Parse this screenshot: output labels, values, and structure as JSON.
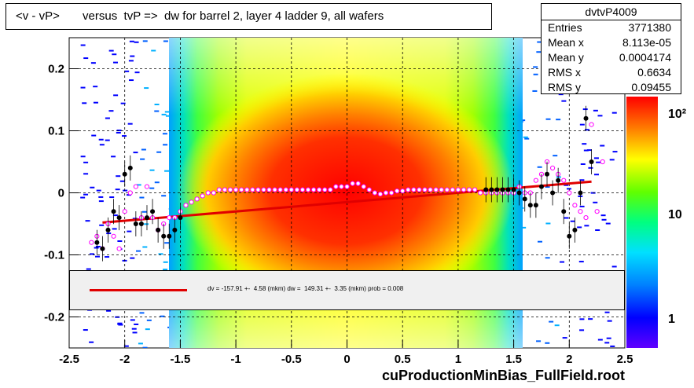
{
  "title": "<v - vP>       versus  tvP =>  dw for barrel 2, layer 4 ladder 9, all wafers",
  "stats": {
    "name": "dvtvP4009",
    "rows": [
      {
        "label": "Entries",
        "value": "3771380"
      },
      {
        "label": "Mean x",
        "value": "8.113e-05"
      },
      {
        "label": "Mean y",
        "value": "0.0004174"
      },
      {
        "label": "RMS x",
        "value": "0.6634"
      },
      {
        "label": "RMS y",
        "value": "0.09455"
      }
    ]
  },
  "fit_text": "dv = -157.91 +-  4.58 (mkm) dw =  149.31 +-  3.35 (mkm) prob = 0.008",
  "footer": "cuProductionMinBias_FullField.root",
  "colorbar": {
    "labels": [
      "10²",
      "10",
      "1"
    ]
  },
  "chart_data": {
    "type": "heatmap",
    "xlim": [
      -2.5,
      2.5
    ],
    "ylim": [
      -0.25,
      0.25
    ],
    "xticks": [
      "-2.5",
      "-2",
      "-1.5",
      "-1",
      "-0.5",
      "0",
      "0.5",
      "1",
      "1.5",
      "2",
      "2.5"
    ],
    "yticks": [
      "0.2",
      "0.1",
      "0",
      "-0.1",
      "-0.2"
    ],
    "grid": true,
    "fit_line": {
      "x": [
        -2.2,
        2.2
      ],
      "y": [
        -0.048,
        0.018
      ],
      "color": "#e00000"
    },
    "mean_points": {
      "color": "#000000",
      "x": [
        -2.25,
        -2.2,
        -2.15,
        -2.1,
        -2.05,
        -2.0,
        -1.95,
        -1.9,
        -1.85,
        -1.8,
        -1.75,
        -1.7,
        -1.65,
        -1.6,
        -1.55,
        -1.5,
        1.25,
        1.3,
        1.35,
        1.4,
        1.45,
        1.5,
        1.55,
        1.6,
        1.65,
        1.7,
        1.75,
        1.8,
        1.85,
        1.9,
        1.95,
        2.0,
        2.05,
        2.1,
        2.15,
        2.2
      ],
      "y": [
        -0.08,
        -0.09,
        -0.06,
        -0.03,
        -0.04,
        0.03,
        0.04,
        -0.05,
        -0.05,
        -0.04,
        -0.03,
        -0.06,
        -0.07,
        -0.07,
        -0.06,
        -0.04,
        0.005,
        0.005,
        0.005,
        0.005,
        0.005,
        0.005,
        0.0,
        -0.01,
        -0.02,
        -0.02,
        0.01,
        0.03,
        0.0,
        0.02,
        -0.03,
        -0.07,
        -0.06,
        0.0,
        0.12,
        0.05
      ]
    },
    "rms_points": {
      "color": "#ff00ff",
      "x": [
        -2.3,
        -2.25,
        -2.2,
        -2.15,
        -2.1,
        -2.05,
        -2.0,
        -1.95,
        -1.9,
        -1.85,
        -1.8,
        -1.75,
        -1.7,
        -1.65,
        -1.6,
        -1.55,
        -1.5,
        -1.45,
        -1.4,
        -1.35,
        -1.3,
        -1.25,
        -1.2,
        -1.15,
        -1.1,
        -1.05,
        -1.0,
        -0.95,
        -0.9,
        -0.85,
        -0.8,
        -0.75,
        -0.7,
        -0.65,
        -0.6,
        -0.55,
        -0.5,
        -0.45,
        -0.4,
        -0.35,
        -0.3,
        -0.25,
        -0.2,
        -0.15,
        -0.1,
        -0.05,
        0.0,
        0.05,
        0.1,
        0.15,
        0.2,
        0.25,
        0.3,
        0.35,
        0.4,
        0.45,
        0.5,
        0.55,
        0.6,
        0.65,
        0.7,
        0.75,
        0.8,
        0.85,
        0.9,
        0.95,
        1.0,
        1.05,
        1.1,
        1.15,
        1.2,
        1.25,
        1.3,
        1.35,
        1.4,
        1.45,
        1.5,
        1.55,
        1.6,
        1.65,
        1.7,
        1.75,
        1.8,
        1.85,
        1.9,
        1.95,
        2.0,
        2.05,
        2.1,
        2.15,
        2.2,
        2.25,
        2.3
      ],
      "y": [
        -0.08,
        -0.07,
        -0.09,
        -0.05,
        -0.07,
        -0.09,
        -0.03,
        0.0,
        0.01,
        -0.04,
        0.01,
        -0.04,
        -0.06,
        -0.05,
        -0.04,
        -0.04,
        -0.03,
        -0.02,
        -0.015,
        -0.01,
        -0.005,
        0.0,
        0.0,
        0.005,
        0.005,
        0.005,
        0.005,
        0.005,
        0.005,
        0.005,
        0.005,
        0.005,
        0.005,
        0.005,
        0.005,
        0.005,
        0.005,
        0.005,
        0.005,
        0.005,
        0.005,
        0.005,
        0.005,
        0.005,
        0.01,
        0.01,
        0.01,
        0.015,
        0.015,
        0.01,
        0.005,
        0.0,
        -0.002,
        0.0,
        0.0,
        0.003,
        0.003,
        0.005,
        0.005,
        0.005,
        0.005,
        0.005,
        0.005,
        0.005,
        0.005,
        0.005,
        0.005,
        0.005,
        0.005,
        0.005,
        0.0,
        0.0,
        0.0,
        0.0,
        0.0,
        0.0,
        0.0,
        0.01,
        0.0,
        0.0,
        0.02,
        0.03,
        0.05,
        0.04,
        0.03,
        0.02,
        0.0,
        -0.02,
        -0.03,
        -0.04,
        0.11,
        -0.03,
        0.05
      ]
    }
  }
}
